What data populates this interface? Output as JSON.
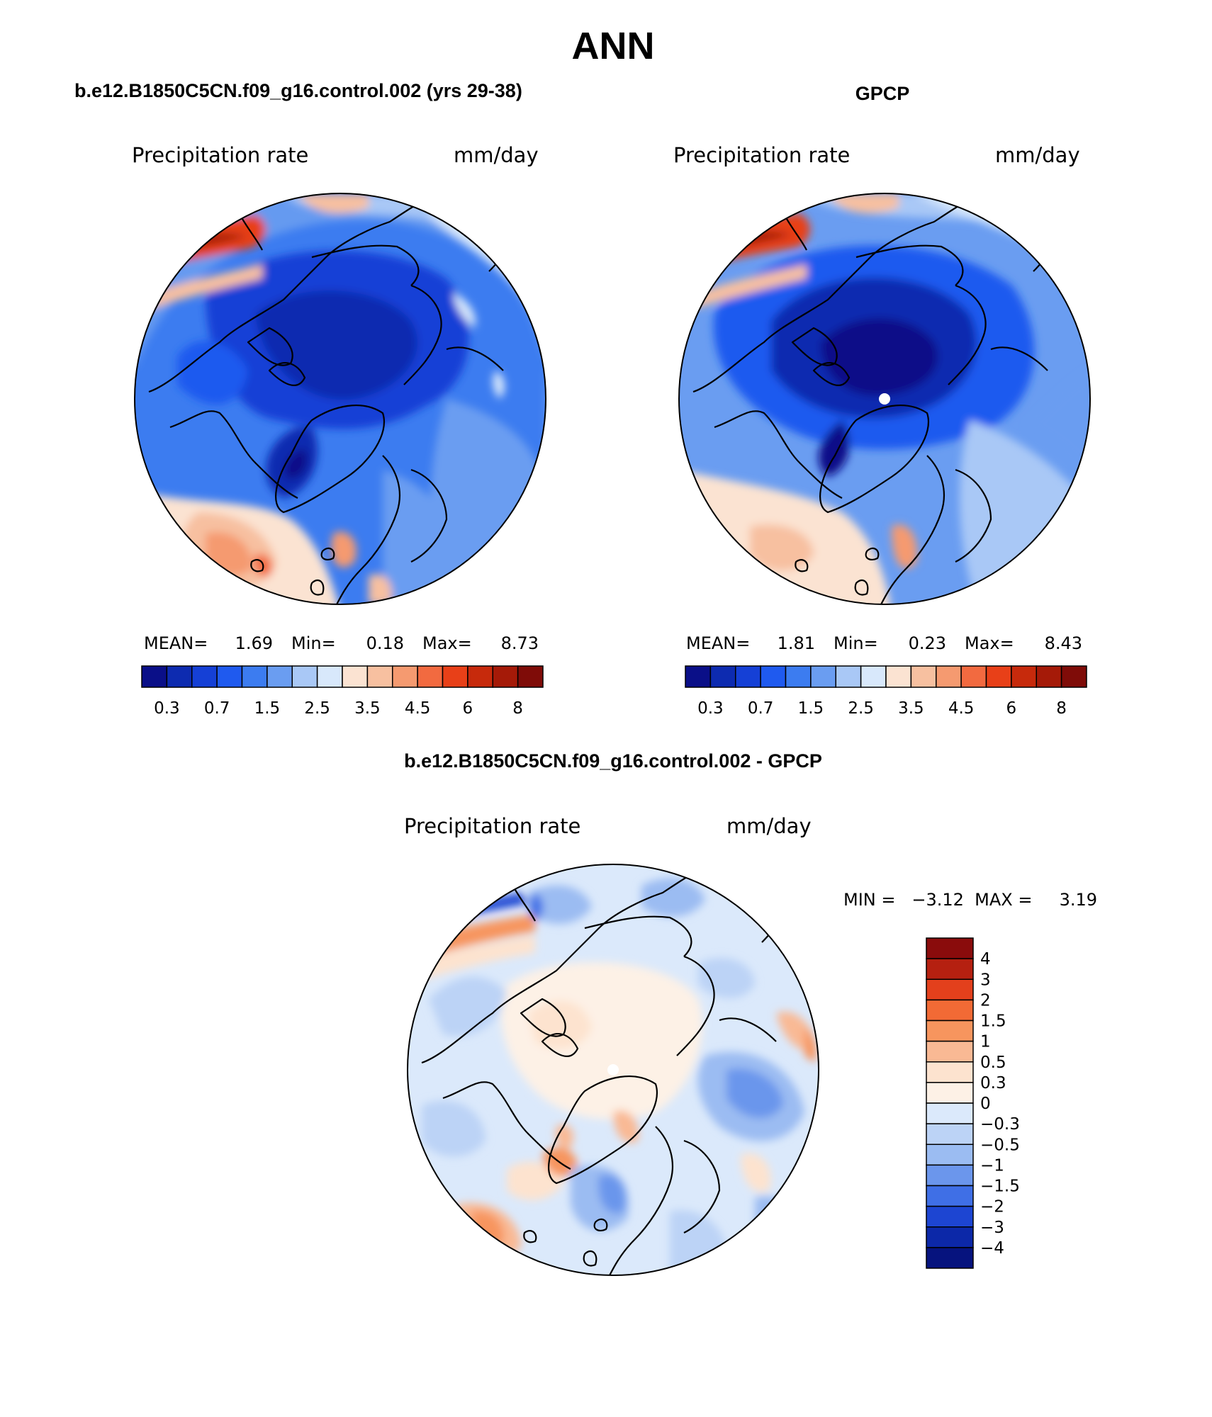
{
  "figure_title": "ANN",
  "panels": [
    {
      "title": "b.e12.B1850C5CN.f09_g16.control.002 (yrs 29-38)",
      "var_label": "Precipitation rate",
      "units": "mm/day",
      "stats": {
        "mean_label": "MEAN=",
        "mean": "1.69",
        "min_label": "Min=",
        "min": "0.18",
        "max_label": "Max=",
        "max": "8.73"
      },
      "colorbar": {
        "colors": [
          "#0a0f88",
          "#0d2bb0",
          "#1540d6",
          "#1f5aef",
          "#3c7cf0",
          "#6a9df1",
          "#a9c8f6",
          "#d8e8fb",
          "#fbe3d2",
          "#f7c0a0",
          "#f59a70",
          "#f26a40",
          "#e84018",
          "#c72a0c",
          "#a51a08",
          "#7f0c08"
        ],
        "labels": [
          "0.3",
          "0.7",
          "1.5",
          "2.5",
          "3.5",
          "4.5",
          "6",
          "8"
        ]
      }
    },
    {
      "title": "GPCP",
      "var_label": "Precipitation rate",
      "units": "mm/day",
      "stats": {
        "mean_label": "MEAN=",
        "mean": "1.81",
        "min_label": "Min=",
        "min": "0.23",
        "max_label": "Max=",
        "max": "8.43"
      },
      "colorbar": {
        "colors": [
          "#0a0f88",
          "#0d2bb0",
          "#1540d6",
          "#1f5aef",
          "#3c7cf0",
          "#6a9df1",
          "#a9c8f6",
          "#d8e8fb",
          "#fbe3d2",
          "#f7c0a0",
          "#f59a70",
          "#f26a40",
          "#e84018",
          "#c72a0c",
          "#a51a08",
          "#7f0c08"
        ],
        "labels": [
          "0.3",
          "0.7",
          "1.5",
          "2.5",
          "3.5",
          "4.5",
          "6",
          "8"
        ]
      }
    }
  ],
  "diff_panel": {
    "title": "b.e12.B1850C5CN.f09_g16.control.002 - GPCP",
    "var_label": "Precipitation rate",
    "units": "mm/day",
    "range_text": "MIN =   −3.12  MAX =     3.19",
    "colorbar": {
      "colors_top_to_bottom": [
        "#8a0c0c",
        "#b52010",
        "#e3401c",
        "#f26a35",
        "#f7955e",
        "#f9b994",
        "#fde3cf",
        "#fdf1e6",
        "#dbe9fb",
        "#bcd3f6",
        "#9bbcf2",
        "#6b96ec",
        "#3f6fe6",
        "#1d45d2",
        "#0c28a8",
        "#06137e"
      ],
      "labels": [
        "4",
        "3",
        "2",
        "1.5",
        "1",
        "0.5",
        "0.3",
        "0",
        "−0.3",
        "−0.5",
        "−1",
        "−1.5",
        "−2",
        "−3",
        "−4"
      ]
    }
  }
}
